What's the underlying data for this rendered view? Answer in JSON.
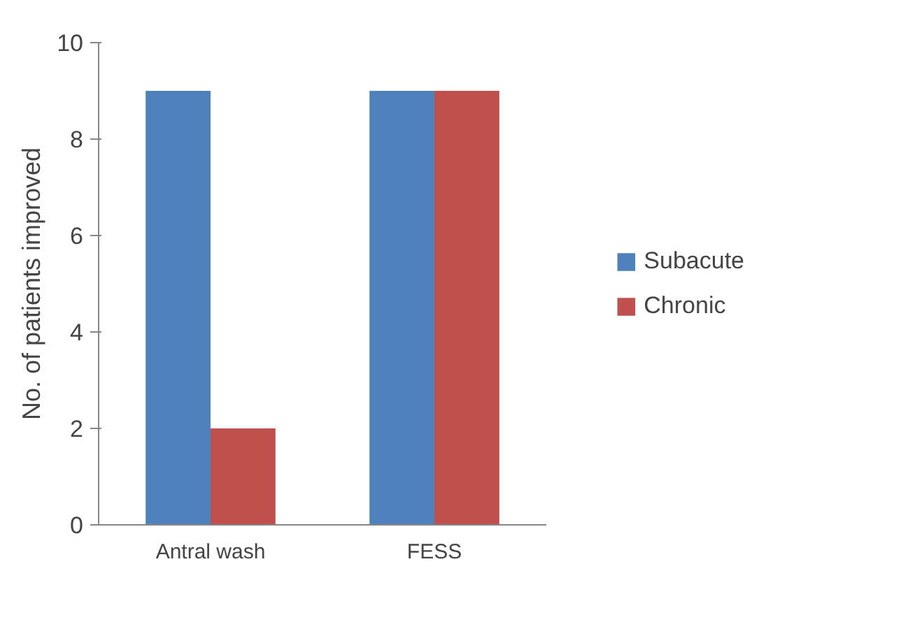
{
  "chart_data": {
    "type": "bar",
    "ylabel": "No. of patients improved",
    "categories": [
      "Antral wash",
      "FESS"
    ],
    "series": [
      {
        "name": "Subacute",
        "color": "#4f81bd",
        "values": [
          9,
          9
        ]
      },
      {
        "name": "Chronic",
        "color": "#c0504d",
        "values": [
          2,
          9
        ]
      }
    ],
    "ylim": [
      0,
      10
    ],
    "yticks": [
      0,
      2,
      4,
      6,
      8,
      10
    ],
    "grid": false,
    "legend": "right"
  }
}
